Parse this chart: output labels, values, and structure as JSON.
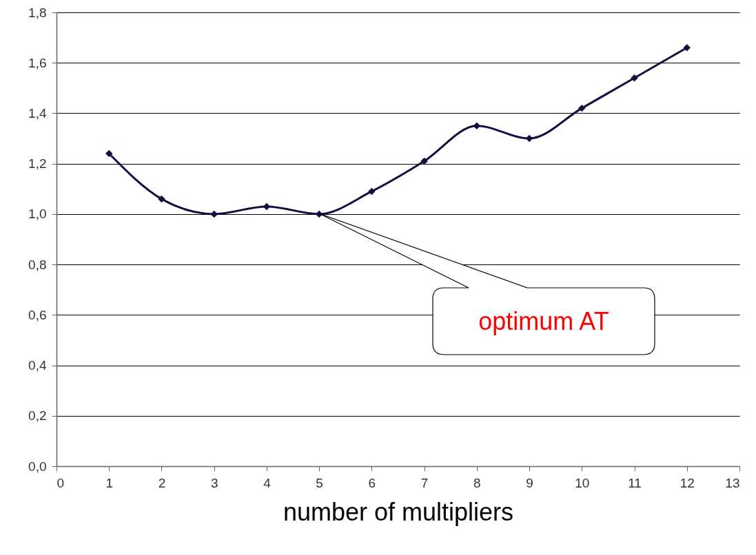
{
  "chart_data": {
    "type": "line",
    "xlabel": "number of multipliers",
    "x": [
      1,
      2,
      3,
      4,
      5,
      6,
      7,
      8,
      9,
      10,
      11,
      12
    ],
    "series": [
      {
        "color": "#101040",
        "values": [
          1.24,
          1.06,
          1.0,
          1.03,
          1.0,
          1.09,
          1.21,
          1.35,
          1.3,
          1.42,
          1.54,
          1.66
        ]
      }
    ],
    "xlim": [
      0,
      13
    ],
    "xticks": [
      0,
      1,
      2,
      3,
      4,
      5,
      6,
      7,
      8,
      9,
      10,
      11,
      12,
      13
    ],
    "ylim": [
      0,
      1.8
    ],
    "yticks": [
      {
        "value": 0,
        "label": "0,0"
      },
      {
        "value": 0.2,
        "label": "0,2"
      },
      {
        "value": 0.4,
        "label": "0,4"
      },
      {
        "value": 0.6,
        "label": "0,6"
      },
      {
        "value": 0.8,
        "label": "0,8"
      },
      {
        "value": 1,
        "label": "1,0"
      },
      {
        "value": 1.2,
        "label": "1,2"
      },
      {
        "value": 1.4,
        "label": "1,4"
      },
      {
        "value": 1.6,
        "label": "1,6"
      },
      {
        "value": 1.8,
        "label": "1,8"
      }
    ],
    "grid": "y",
    "marker": "diamond",
    "line_style": "solid",
    "annotations": [
      "optimum AT"
    ]
  }
}
